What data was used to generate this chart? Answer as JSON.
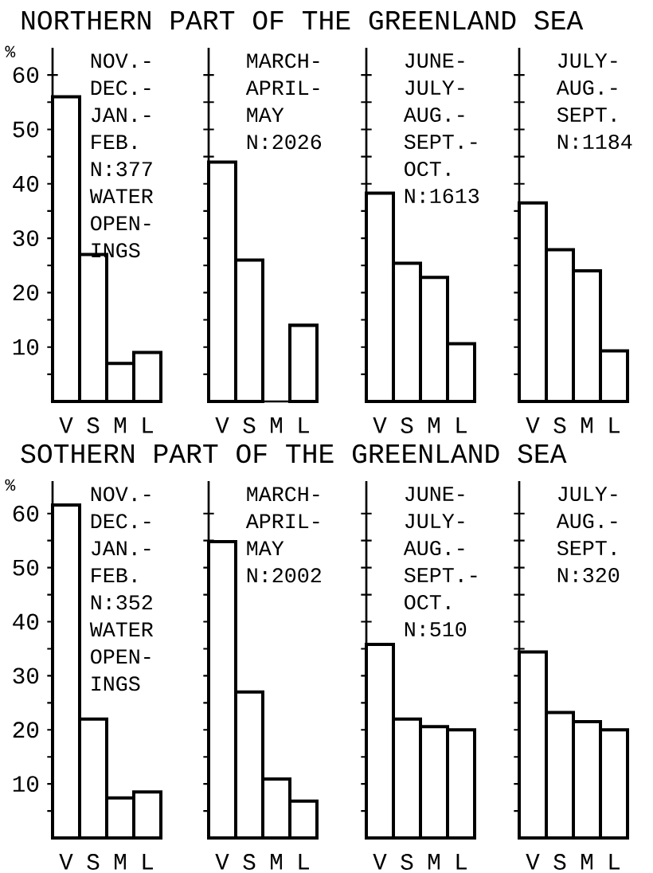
{
  "chart_data": [
    {
      "type": "bar",
      "title": "NORTHERN PART OF THE GREENLAND SEA",
      "ylabel": "%",
      "categories": [
        "V",
        "S",
        "M",
        "L"
      ],
      "values": [
        56,
        27,
        7,
        9
      ],
      "color": "#ffffff",
      "ylim": [
        0,
        65
      ],
      "yticks": [
        {
          "value": 5,
          "label": null
        },
        10,
        {
          "value": 15,
          "label": null
        },
        20,
        {
          "value": 25,
          "label": null
        },
        30,
        {
          "value": 35,
          "label": null
        },
        40,
        {
          "value": 45,
          "label": null
        },
        50,
        {
          "value": 55,
          "label": null
        },
        60
      ],
      "annotations": [
        "NOV.-",
        "DEC.-",
        "JAN.-",
        "FEB.",
        "N:377",
        "WATER",
        "OPEN-",
        "INGS"
      ]
    },
    {
      "type": "bar",
      "categories": [
        "V",
        "S",
        "M",
        "L"
      ],
      "values": [
        44,
        26,
        null,
        14
      ],
      "color": "#ffffff",
      "ylim": [
        0,
        65
      ],
      "yticks": [
        {
          "value": 5,
          "label": null
        },
        {
          "value": 10,
          "label": null
        },
        {
          "value": 15,
          "label": null
        },
        {
          "value": 20,
          "label": null
        },
        {
          "value": 25,
          "label": null
        },
        {
          "value": 30,
          "label": null
        },
        {
          "value": 35,
          "label": null
        },
        {
          "value": 40,
          "label": null
        },
        {
          "value": 45,
          "label": null
        },
        {
          "value": 50,
          "label": null
        },
        {
          "value": 55,
          "label": null
        },
        {
          "value": 60,
          "label": null
        }
      ],
      "tick_labels": "x",
      "annotations": [
        "MARCH-",
        "APRIL-",
        "MAY",
        "N:2026"
      ]
    },
    {
      "type": "bar",
      "categories": [
        "V",
        "S",
        "M",
        "L"
      ],
      "values": [
        38.3,
        25.4,
        22.8,
        10.6
      ],
      "color": "#ffffff",
      "ylim": [
        0,
        65
      ],
      "yticks": [
        {
          "value": 5,
          "label": null
        },
        {
          "value": 10,
          "label": null
        },
        {
          "value": 15,
          "label": null
        },
        {
          "value": 20,
          "label": null
        },
        {
          "value": 25,
          "label": null
        },
        {
          "value": 30,
          "label": null
        },
        {
          "value": 35,
          "label": null
        },
        {
          "value": 40,
          "label": null
        },
        {
          "value": 45,
          "label": null
        },
        {
          "value": 50,
          "label": null
        },
        {
          "value": 55,
          "label": null
        },
        {
          "value": 60,
          "label": null
        }
      ],
      "tick_labels": "x",
      "annotations": [
        "JUNE-",
        "JULY-",
        "AUG.-",
        "SEPT.-",
        "OCT.",
        "N:1613"
      ]
    },
    {
      "type": "bar",
      "categories": [
        "V",
        "S",
        "M",
        "L"
      ],
      "values": [
        36.5,
        27.9,
        24,
        9.3
      ],
      "color": "#ffffff",
      "ylim": [
        0,
        65
      ],
      "yticks": [
        {
          "value": 5,
          "label": null
        },
        {
          "value": 10,
          "label": null
        },
        {
          "value": 15,
          "label": null
        },
        {
          "value": 20,
          "label": null
        },
        {
          "value": 25,
          "label": null
        },
        {
          "value": 30,
          "label": null
        },
        {
          "value": 35,
          "label": null
        },
        {
          "value": 40,
          "label": null
        },
        {
          "value": 45,
          "label": null
        },
        {
          "value": 50,
          "label": null
        },
        {
          "value": 55,
          "label": null
        },
        {
          "value": 60,
          "label": null
        }
      ],
      "tick_labels": "x",
      "annotations": [
        "JULY-",
        "AUG.-",
        "SEPT.",
        "N:1184"
      ]
    },
    {
      "type": "bar",
      "title": "SOTHERN PART OF THE GREENLAND SEA",
      "ylabel": "%",
      "categories": [
        "V",
        "S",
        "M",
        "L"
      ],
      "values": [
        61.6,
        22,
        7.4,
        8.5
      ],
      "color": "#ffffff",
      "ylim": [
        0,
        66
      ],
      "yticks": [
        {
          "value": 5,
          "label": null
        },
        10,
        {
          "value": 15,
          "label": null
        },
        20,
        {
          "value": 25,
          "label": null
        },
        30,
        {
          "value": 35,
          "label": null
        },
        40,
        {
          "value": 45,
          "label": null
        },
        50,
        {
          "value": 55,
          "label": null
        },
        60
      ],
      "annotations": [
        "NOV.-",
        "DEC.-",
        "JAN.-",
        "FEB.",
        "N:352",
        "WATER",
        "OPEN-",
        "INGS"
      ]
    },
    {
      "type": "bar",
      "categories": [
        "V",
        "S",
        "M",
        "L"
      ],
      "values": [
        54.8,
        27,
        10.9,
        6.8
      ],
      "color": "#ffffff",
      "ylim": [
        0,
        66
      ],
      "yticks": [
        {
          "value": 5,
          "label": null
        },
        {
          "value": 10,
          "label": null
        },
        {
          "value": 15,
          "label": null
        },
        {
          "value": 20,
          "label": null
        },
        {
          "value": 25,
          "label": null
        },
        {
          "value": 30,
          "label": null
        },
        {
          "value": 35,
          "label": null
        },
        {
          "value": 40,
          "label": null
        },
        {
          "value": 45,
          "label": null
        },
        {
          "value": 50,
          "label": null
        },
        {
          "value": 55,
          "label": null
        },
        {
          "value": 60,
          "label": null
        }
      ],
      "tick_labels": "x",
      "annotations": [
        "MARCH-",
        "APRIL-",
        "MAY",
        "N:2002"
      ]
    },
    {
      "type": "bar",
      "categories": [
        "V",
        "S",
        "M",
        "L"
      ],
      "values": [
        35.8,
        22,
        20.6,
        20
      ],
      "color": "#ffffff",
      "ylim": [
        0,
        66
      ],
      "yticks": [
        {
          "value": 5,
          "label": null
        },
        {
          "value": 10,
          "label": null
        },
        {
          "value": 15,
          "label": null
        },
        {
          "value": 20,
          "label": null
        },
        {
          "value": 25,
          "label": null
        },
        {
          "value": 30,
          "label": null
        },
        {
          "value": 35,
          "label": null
        },
        {
          "value": 40,
          "label": null
        },
        {
          "value": 45,
          "label": null
        },
        {
          "value": 50,
          "label": null
        },
        {
          "value": 55,
          "label": null
        },
        {
          "value": 60,
          "label": null
        }
      ],
      "tick_labels": "x",
      "annotations": [
        "JUNE-",
        "JULY-",
        "AUG.-",
        "SEPT.-",
        "OCT.",
        "N:510"
      ]
    },
    {
      "type": "bar",
      "categories": [
        "V",
        "S",
        "M",
        "L"
      ],
      "values": [
        34.4,
        23.2,
        21.5,
        20
      ],
      "color": "#ffffff",
      "ylim": [
        0,
        66
      ],
      "yticks": [
        {
          "value": 5,
          "label": null
        },
        {
          "value": 10,
          "label": null
        },
        {
          "value": 15,
          "label": null
        },
        {
          "value": 20,
          "label": null
        },
        {
          "value": 25,
          "label": null
        },
        {
          "value": 30,
          "label": null
        },
        {
          "value": 35,
          "label": null
        },
        {
          "value": 40,
          "label": null
        },
        {
          "value": 45,
          "label": null
        },
        {
          "value": 50,
          "label": null
        },
        {
          "value": 55,
          "label": null
        },
        {
          "value": 60,
          "label": null
        }
      ],
      "tick_labels": "x",
      "annotations": [
        "JULY-",
        "AUG.-",
        "SEPT.",
        "N:320"
      ]
    }
  ]
}
